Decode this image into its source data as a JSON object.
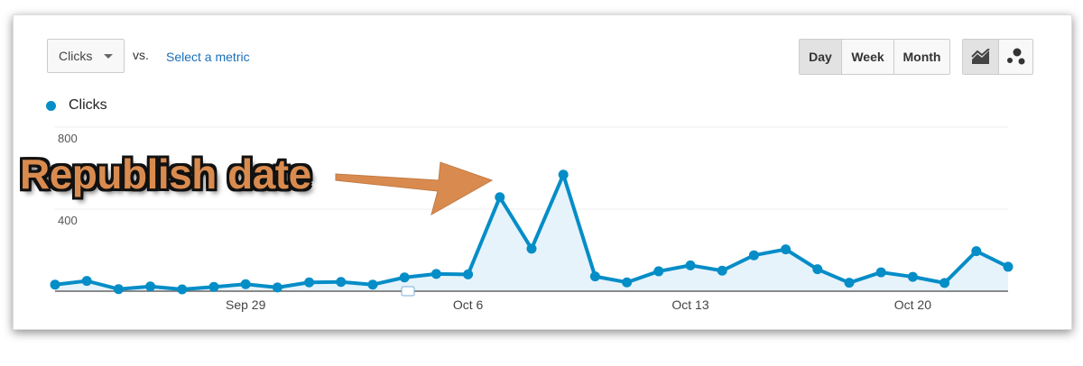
{
  "controls": {
    "metric_select": "Clicks",
    "vs_label": "vs.",
    "select_metric_link": "Select a metric",
    "granularity": [
      {
        "label": "Day",
        "active": true
      },
      {
        "label": "Week",
        "active": false
      },
      {
        "label": "Month",
        "active": false
      }
    ],
    "chart_types": [
      {
        "icon": "line-chart-icon",
        "active": true
      },
      {
        "icon": "motion-chart-icon",
        "active": false
      }
    ]
  },
  "annotation": {
    "text": "Republish date",
    "color": "#d98b4f"
  },
  "chart_data": {
    "type": "area",
    "legend": [
      {
        "name": "Clicks",
        "color": "#058dc7"
      }
    ],
    "legend_position": "top-left",
    "ylim": [
      0,
      800
    ],
    "yticks": [
      "800",
      "400"
    ],
    "ytick_values": [
      800,
      400
    ],
    "xtick_labels": [
      "Sep 29",
      "Oct 6",
      "Oct 13",
      "Oct 20"
    ],
    "xtick_indices": [
      6,
      13,
      20,
      27
    ],
    "grid": true,
    "x": [
      "Sep 23",
      "Sep 24",
      "Sep 25",
      "Sep 26",
      "Sep 27",
      "Sep 28",
      "Sep 29",
      "Sep 30",
      "Oct 1",
      "Oct 2",
      "Oct 3",
      "Oct 4",
      "Oct 5",
      "Oct 6",
      "Oct 7",
      "Oct 8",
      "Oct 9",
      "Oct 10",
      "Oct 11",
      "Oct 12",
      "Oct 13",
      "Oct 14",
      "Oct 15",
      "Oct 16",
      "Oct 17",
      "Oct 18",
      "Oct 19",
      "Oct 20",
      "Oct 21",
      "Oct 22",
      "Oct 23"
    ],
    "series": [
      {
        "name": "Clicks",
        "color": "#058dc7",
        "fill": "#e6f3fa",
        "values": [
          32,
          50,
          10,
          23,
          9,
          21,
          34,
          18,
          43,
          45,
          32,
          67,
          84,
          82,
          458,
          207,
          568,
          72,
          43,
          97,
          126,
          100,
          175,
          204,
          107,
          41,
          92,
          70,
          40,
          195,
          119
        ]
      }
    ]
  }
}
